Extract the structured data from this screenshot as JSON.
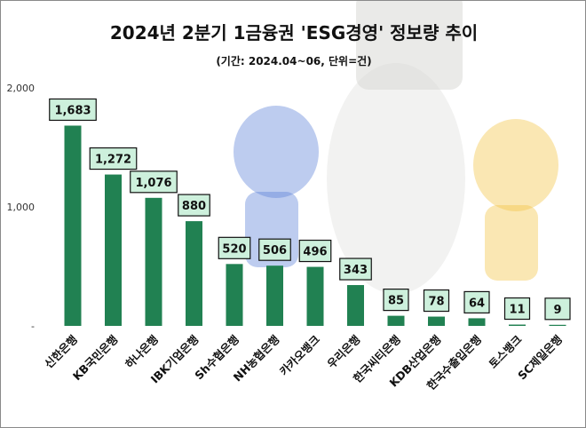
{
  "chart_data": {
    "type": "bar",
    "title": "2024년 2분기 1금융권 'ESG경영' 정보량 추이",
    "subtitle": "(기간: 2024.04~06, 단위=건)",
    "categories": [
      "신한은행",
      "KB국민은행",
      "하나은행",
      "IBK기업은행",
      "Sh수협은행",
      "NH농협은행",
      "카카오뱅크",
      "우리은행",
      "한국씨티은행",
      "KDB산업은행",
      "한국수출입은행",
      "토스뱅크",
      "SC제일은행"
    ],
    "values": [
      1683,
      1272,
      1076,
      880,
      520,
      506,
      496,
      343,
      85,
      78,
      64,
      11,
      9
    ],
    "data_labels": [
      "1,683",
      "1,272",
      "1,076",
      "880",
      "520",
      "506",
      "496",
      "343",
      "85",
      "78",
      "64",
      "11",
      "9"
    ],
    "yticks": [
      "-",
      "1,000",
      "2,000"
    ],
    "ylim": [
      0,
      2000
    ],
    "xlabel": "",
    "ylabel": "",
    "grid": false,
    "bar_color": "#218152",
    "label_box_color": "#cdf0dc"
  }
}
